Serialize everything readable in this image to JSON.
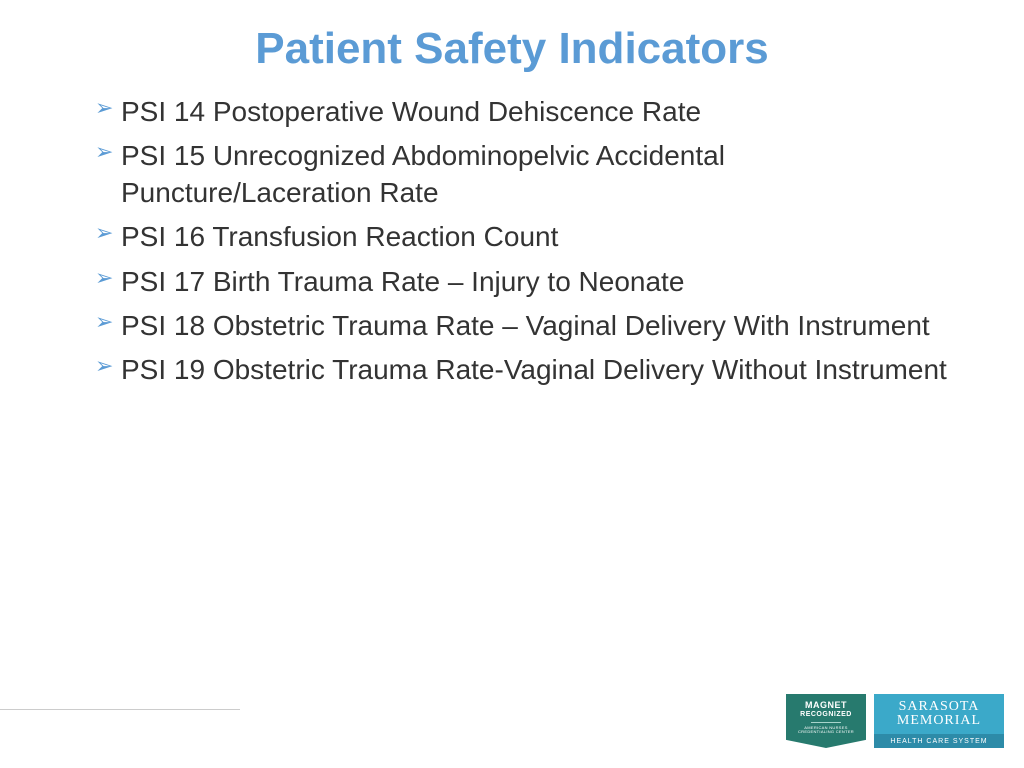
{
  "title": "Patient Safety Indicators",
  "bullets": [
    "PSI 14 Postoperative Wound Dehiscence Rate",
    "PSI 15 Unrecognized Abdominopelvic Accidental Puncture/Laceration Rate",
    "PSI 16 Transfusion Reaction Count",
    "PSI 17 Birth Trauma Rate – Injury to Neonate",
    "PSI 18 Obstetric Trauma Rate – Vaginal Delivery With Instrument",
    "PSI 19 Obstetric Trauma Rate-Vaginal Delivery Without Instrument"
  ],
  "logos": {
    "magnet": {
      "line1": "MAGNET",
      "line2": "RECOGNIZED",
      "small1": "AMERICAN NURSES",
      "small2": "CREDENTIALING CENTER",
      "bg_color": "#277a6e"
    },
    "sarasota": {
      "line1": "SARASOTA",
      "line2": "MEMORIAL",
      "subtitle": "HEALTH CARE SYSTEM",
      "bg_color": "#3ba9c9",
      "bottom_bg_color": "#2d8ba8"
    }
  },
  "colors": {
    "title_color": "#5b9bd5",
    "text_color": "#333333",
    "bullet_color": "#5b9bd5",
    "background": "#ffffff"
  },
  "typography": {
    "title_fontsize": 44,
    "body_fontsize": 28
  }
}
